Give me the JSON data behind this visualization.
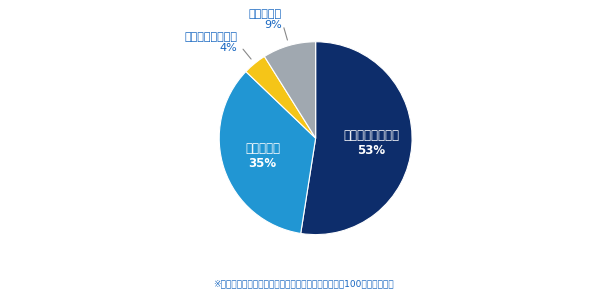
{
  "slices": [
    {
      "label": "選考辞退が増えた",
      "pct": 53,
      "color": "#0d2d6b",
      "text_color": "white",
      "inside": true
    },
    {
      "label": "変化はない",
      "pct": 35,
      "color": "#2196d3",
      "text_color": "white",
      "inside": true
    },
    {
      "label": "選考辞退が減った",
      "pct": 4,
      "color": "#f5c518",
      "text_color": "#333333",
      "inside": false
    },
    {
      "label": "分からない",
      "pct": 9,
      "color": "#a0a8b0",
      "text_color": "#333333",
      "inside": false
    }
  ],
  "start_angle": 90,
  "note": "※小数点以下を四捨五入してるため、必ずしも合計が100にならない。",
  "note_color": "#1565c0",
  "background_color": "#ffffff",
  "figsize": [
    6.07,
    2.94
  ],
  "dpi": 100,
  "outside_label_color": "#1565c0"
}
